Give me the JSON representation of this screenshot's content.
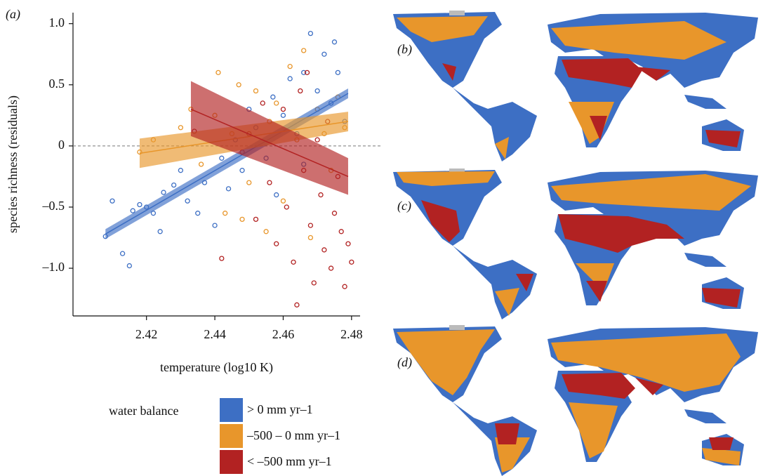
{
  "chart_data": {
    "type": "scatter",
    "panel_label": "(a)",
    "xlabel": "temperature (log10 K)",
    "ylabel": "species richness (residuals)",
    "xlim": [
      2.3985,
      2.4825
    ],
    "ylim": [
      -1.39,
      1.09
    ],
    "xticks": [
      2.42,
      2.44,
      2.46,
      2.48
    ],
    "yticks": [
      {
        "value": -1.0,
        "label": "–1.0"
      },
      {
        "value": -0.5,
        "label": "–0.5"
      },
      0,
      0.5,
      {
        "value": 1.0,
        "label": "1.0"
      }
    ],
    "hline": 0,
    "legend_title": "water balance",
    "series": [
      {
        "name": "> 0 mm yr–1",
        "color": "#3d6fc4",
        "x": [
          2.408,
          2.41,
          2.413,
          2.415,
          2.416,
          2.418,
          2.42,
          2.422,
          2.424,
          2.425,
          2.428,
          2.43,
          2.432,
          2.435,
          2.437,
          2.44,
          2.442,
          2.444,
          2.446,
          2.448,
          2.45,
          2.452,
          2.455,
          2.457,
          2.46,
          2.462,
          2.464,
          2.466,
          2.468,
          2.47,
          2.472,
          2.474,
          2.475,
          2.476,
          2.478,
          2.458,
          2.466
        ],
        "values": [
          -0.74,
          -0.45,
          -0.88,
          -0.98,
          -0.53,
          -0.48,
          -0.5,
          -0.55,
          -0.7,
          -0.38,
          -0.32,
          -0.2,
          -0.45,
          -0.55,
          -0.3,
          -0.65,
          -0.1,
          -0.35,
          0.05,
          -0.2,
          0.3,
          0.15,
          -0.1,
          0.4,
          0.25,
          0.55,
          0.1,
          0.6,
          0.92,
          0.45,
          0.75,
          0.35,
          0.85,
          0.6,
          0.2,
          -0.4,
          -0.15
        ],
        "fit": {
          "x": [
            2.408,
            2.479
          ],
          "y": [
            -0.72,
            0.43
          ],
          "lower": [
            -0.76,
            0.39
          ],
          "upper": [
            -0.68,
            0.47
          ]
        }
      },
      {
        "name": "–500 – 0 mm yr–1",
        "color": "#e8962b",
        "x": [
          2.418,
          2.422,
          2.43,
          2.433,
          2.436,
          2.44,
          2.441,
          2.443,
          2.445,
          2.447,
          2.45,
          2.452,
          2.455,
          2.456,
          2.458,
          2.46,
          2.462,
          2.464,
          2.466,
          2.468,
          2.47,
          2.472,
          2.474,
          2.476,
          2.478,
          2.448
        ],
        "values": [
          -0.05,
          0.05,
          0.15,
          0.3,
          -0.15,
          0.25,
          0.6,
          -0.55,
          0.1,
          0.5,
          -0.3,
          0.45,
          -0.7,
          0.2,
          0.35,
          -0.45,
          0.65,
          0.05,
          0.78,
          -0.75,
          0.3,
          0.1,
          -0.2,
          0.4,
          0.15,
          -0.6
        ],
        "fit": {
          "x": [
            2.418,
            2.479
          ],
          "y": [
            -0.06,
            0.2
          ],
          "lower": [
            -0.18,
            0.12
          ],
          "upper": [
            0.06,
            0.28
          ]
        }
      },
      {
        "name": "< –500 mm yr–1",
        "color": "#b22222",
        "x": [
          2.434,
          2.442,
          2.448,
          2.45,
          2.452,
          2.454,
          2.456,
          2.458,
          2.46,
          2.461,
          2.463,
          2.464,
          2.465,
          2.466,
          2.468,
          2.469,
          2.47,
          2.471,
          2.472,
          2.473,
          2.474,
          2.475,
          2.476,
          2.477,
          2.478,
          2.479,
          2.48,
          2.467
        ],
        "values": [
          0.12,
          -0.92,
          -0.05,
          0.1,
          -0.6,
          0.35,
          -0.3,
          -0.8,
          0.3,
          -0.5,
          -0.95,
          -1.3,
          0.45,
          -0.2,
          -0.65,
          -1.12,
          0.05,
          -0.4,
          -0.85,
          0.2,
          -1.0,
          -0.55,
          -0.25,
          -0.7,
          -1.15,
          -0.8,
          -0.95,
          0.6
        ],
        "fit": {
          "x": [
            2.433,
            2.479
          ],
          "y": [
            0.3,
            -0.25
          ],
          "lower": [
            0.08,
            -0.4
          ],
          "upper": [
            0.53,
            -0.1
          ]
        }
      }
    ]
  },
  "maps": [
    {
      "label": "(b)"
    },
    {
      "label": "(c)"
    },
    {
      "label": "(d)"
    }
  ]
}
